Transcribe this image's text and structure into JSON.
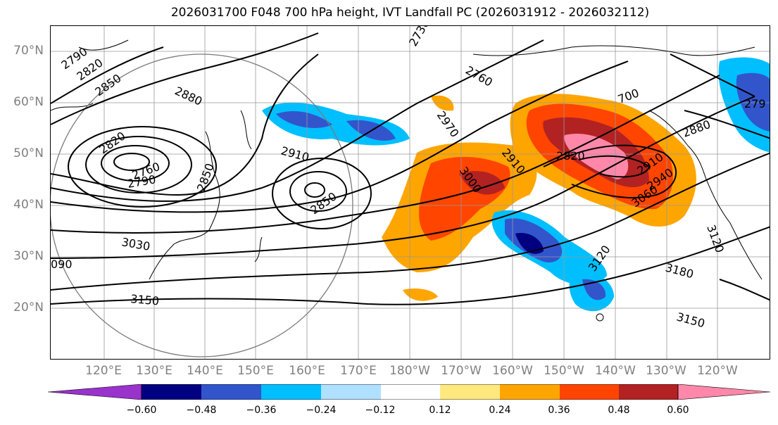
{
  "title": "2026031700 F048 700 hPa height, IVT Landfall PC (2026031912 - 2026032112)",
  "lat_labels": [
    "70°N",
    "60°N",
    "50°N",
    "40°N",
    "30°N",
    "20°N"
  ],
  "lon_labels": [
    "120°E",
    "130°E",
    "140°E",
    "150°E",
    "160°E",
    "170°E",
    "180°W",
    "170°W",
    "160°W",
    "150°W",
    "140°W",
    "130°W",
    "120°W"
  ],
  "contour_labels": [
    "2790",
    "2820",
    "2850",
    "2880",
    "2910",
    "2970",
    "3000",
    "2820",
    "2760",
    "2790",
    "2850",
    "2910",
    "2850",
    "3030",
    "090",
    "3150",
    "2820",
    "2910",
    "2940",
    "3060",
    "3120",
    "3180",
    "3150",
    "3120",
    "2880",
    "700",
    "279",
    "2760",
    "2730"
  ],
  "colorbar": {
    "tick_labels": [
      "−0.60",
      "−0.48",
      "−0.36",
      "−0.24",
      "−0.12",
      "0.12",
      "0.24",
      "0.36",
      "0.48",
      "0.60"
    ],
    "colors": [
      "#9933cc",
      "#000080",
      "#3355cc",
      "#00bfff",
      "#b0e0ff",
      "#ffffff",
      "#ffe97f",
      "#ffa500",
      "#ff4500",
      "#b22222",
      "#ff88aa"
    ]
  }
}
